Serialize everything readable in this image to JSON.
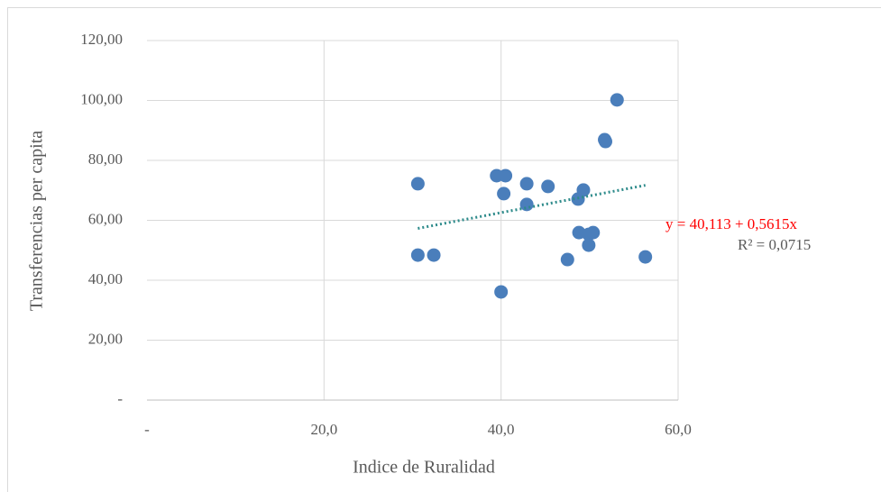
{
  "chart_data": {
    "type": "scatter",
    "x_label": "Indice de Ruralidad",
    "y_label": "Transferencias per capita",
    "color": "#4a7ebb",
    "x": [
      30.6,
      30.6,
      32.4,
      39.5,
      40.5,
      40.3,
      40.0,
      42.9,
      42.9,
      45.3,
      48.7,
      49.3,
      48.8,
      49.9,
      50.4,
      49.9,
      47.5,
      51.7,
      51.8,
      53.1,
      56.3
    ],
    "values": [
      72.2,
      48.4,
      48.4,
      74.9,
      74.9,
      68.9,
      36.1,
      72.2,
      65.3,
      71.3,
      67.1,
      70.1,
      55.9,
      55.3,
      55.9,
      51.7,
      46.9,
      86.9,
      86.3,
      100.2,
      47.8
    ],
    "trendline": {
      "color": "#2e8b8b",
      "x": [
        30.6,
        56.3
      ],
      "values": [
        57.3,
        71.7
      ],
      "equation": "y = 40,113 + 0,5615x",
      "equation_color": "#ff0000",
      "r_squared": "R² = 0,0715"
    },
    "xlim": [
      0,
      60
    ],
    "xticks": [
      {
        "value": 0,
        "label": "-"
      },
      {
        "value": 20,
        "label": "20,0"
      },
      {
        "value": 40,
        "label": "40,0"
      },
      {
        "value": 60,
        "label": "60,0"
      }
    ],
    "ylim": [
      0,
      120
    ],
    "yticks": [
      {
        "value": 0,
        "label": "-"
      },
      {
        "value": 20,
        "label": "20,00"
      },
      {
        "value": 40,
        "label": "40,00"
      },
      {
        "value": 60,
        "label": "60,00"
      },
      {
        "value": 80,
        "label": "80,00"
      },
      {
        "value": 100,
        "label": "100,00"
      },
      {
        "value": 120,
        "label": "120,00"
      }
    ],
    "grid": true
  }
}
